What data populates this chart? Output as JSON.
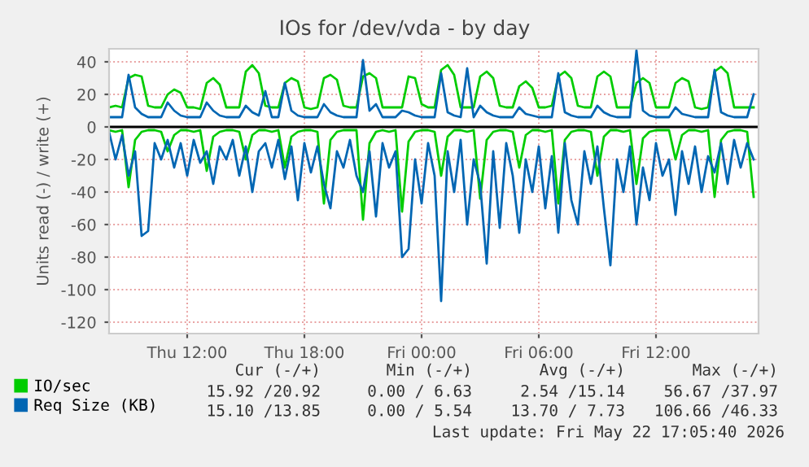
{
  "chart_data": {
    "type": "line",
    "title": "IOs for /dev/vda - by day",
    "ylabel": "Units read (-) / write (+)",
    "x": [
      "2026-05-21T08:00",
      "2026-05-21T08:20",
      "2026-05-21T08:40",
      "2026-05-21T09:00",
      "2026-05-21T09:20",
      "2026-05-21T09:40",
      "2026-05-21T10:00",
      "2026-05-21T10:20",
      "2026-05-21T10:40",
      "2026-05-21T11:00",
      "2026-05-21T11:20",
      "2026-05-21T11:40",
      "2026-05-21T12:00",
      "2026-05-21T12:20",
      "2026-05-21T12:40",
      "2026-05-21T13:00",
      "2026-05-21T13:20",
      "2026-05-21T13:40",
      "2026-05-21T14:00",
      "2026-05-21T14:20",
      "2026-05-21T14:40",
      "2026-05-21T15:00",
      "2026-05-21T15:20",
      "2026-05-21T15:40",
      "2026-05-21T16:00",
      "2026-05-21T16:20",
      "2026-05-21T16:40",
      "2026-05-21T17:00",
      "2026-05-21T17:20",
      "2026-05-21T17:40",
      "2026-05-21T18:00",
      "2026-05-21T18:20",
      "2026-05-21T18:40",
      "2026-05-21T19:00",
      "2026-05-21T19:20",
      "2026-05-21T19:40",
      "2026-05-21T20:00",
      "2026-05-21T20:20",
      "2026-05-21T20:40",
      "2026-05-21T21:00",
      "2026-05-21T21:20",
      "2026-05-21T21:40",
      "2026-05-21T22:00",
      "2026-05-21T22:20",
      "2026-05-21T22:40",
      "2026-05-21T23:00",
      "2026-05-21T23:20",
      "2026-05-21T23:40",
      "2026-05-22T00:00",
      "2026-05-22T00:20",
      "2026-05-22T00:40",
      "2026-05-22T01:00",
      "2026-05-22T01:20",
      "2026-05-22T01:40",
      "2026-05-22T02:00",
      "2026-05-22T02:20",
      "2026-05-22T02:40",
      "2026-05-22T03:00",
      "2026-05-22T03:20",
      "2026-05-22T03:40",
      "2026-05-22T04:00",
      "2026-05-22T04:20",
      "2026-05-22T04:40",
      "2026-05-22T05:00",
      "2026-05-22T05:20",
      "2026-05-22T05:40",
      "2026-05-22T06:00",
      "2026-05-22T06:20",
      "2026-05-22T06:40",
      "2026-05-22T07:00",
      "2026-05-22T07:20",
      "2026-05-22T07:40",
      "2026-05-22T08:00",
      "2026-05-22T08:20",
      "2026-05-22T08:40",
      "2026-05-22T09:00",
      "2026-05-22T09:20",
      "2026-05-22T09:40",
      "2026-05-22T10:00",
      "2026-05-22T10:20",
      "2026-05-22T10:40",
      "2026-05-22T11:00",
      "2026-05-22T11:20",
      "2026-05-22T11:40",
      "2026-05-22T12:00",
      "2026-05-22T12:20",
      "2026-05-22T12:40",
      "2026-05-22T13:00",
      "2026-05-22T13:20",
      "2026-05-22T13:40",
      "2026-05-22T14:00",
      "2026-05-22T14:20",
      "2026-05-22T14:40",
      "2026-05-22T15:00",
      "2026-05-22T15:20",
      "2026-05-22T15:40",
      "2026-05-22T16:00",
      "2026-05-22T16:20",
      "2026-05-22T16:40",
      "2026-05-22T17:00"
    ],
    "series": [
      {
        "name": "IO/sec",
        "color": "#00cc00",
        "values": [
          12,
          13,
          12,
          30,
          32,
          31,
          13,
          12,
          12,
          20,
          23,
          21,
          12,
          12,
          11,
          27,
          30,
          26,
          12,
          12,
          12,
          34,
          38,
          33,
          13,
          12,
          12,
          27,
          30,
          28,
          12,
          11,
          12,
          30,
          32,
          29,
          13,
          12,
          12,
          31,
          33,
          30,
          12,
          12,
          12,
          12,
          31,
          30,
          14,
          12,
          12,
          35,
          38,
          32,
          12,
          12,
          12,
          31,
          34,
          30,
          13,
          12,
          12,
          25,
          28,
          24,
          12,
          12,
          13,
          31,
          34,
          30,
          13,
          12,
          12,
          31,
          34,
          31,
          12,
          12,
          12,
          27,
          30,
          27,
          12,
          12,
          12,
          27,
          30,
          28,
          12,
          11,
          12,
          34,
          37,
          33,
          12,
          12,
          12,
          12
        ]
      },
      {
        "color": "#00cc00",
        "values": [
          -2,
          -3,
          -2,
          -37,
          -8,
          -3,
          -2,
          -2,
          -3,
          -15,
          -5,
          -2,
          -2,
          -3,
          -2,
          -27,
          -6,
          -3,
          -2,
          -2,
          -3,
          -20,
          -5,
          -2,
          -2,
          -3,
          -2,
          -25,
          -6,
          -3,
          -2,
          -2,
          -3,
          -47,
          -8,
          -3,
          -2,
          -2,
          -2,
          -57,
          -10,
          -3,
          -2,
          -3,
          -2,
          -52,
          -9,
          -3,
          -2,
          -2,
          -3,
          -30,
          -6,
          -2,
          -2,
          -3,
          -2,
          -44,
          -8,
          -3,
          -2,
          -2,
          -3,
          -25,
          -5,
          -2,
          -2,
          -3,
          -2,
          -47,
          -8,
          -3,
          -2,
          -2,
          -3,
          -30,
          -6,
          -2,
          -2,
          -3,
          -2,
          -35,
          -7,
          -3,
          -2,
          -2,
          -2,
          -20,
          -5,
          -2,
          -2,
          -3,
          -2,
          -43,
          -8,
          -3,
          -2,
          -2,
          -3,
          -43
        ]
      },
      {
        "name": "Req Size (KB)",
        "color": "#0066b3",
        "values": [
          6,
          6,
          6,
          32,
          12,
          8,
          6,
          6,
          6,
          15,
          10,
          7,
          6,
          6,
          6,
          15,
          10,
          7,
          6,
          6,
          6,
          13,
          9,
          7,
          22,
          6,
          6,
          27,
          10,
          7,
          6,
          6,
          6,
          14,
          9,
          7,
          6,
          6,
          6,
          41,
          10,
          14,
          6,
          6,
          6,
          10,
          9,
          7,
          6,
          6,
          6,
          33,
          9,
          7,
          6,
          36,
          6,
          13,
          9,
          7,
          6,
          6,
          6,
          12,
          8,
          7,
          6,
          6,
          6,
          33,
          9,
          7,
          6,
          6,
          6,
          13,
          9,
          7,
          6,
          6,
          6,
          47,
          10,
          7,
          6,
          6,
          6,
          12,
          8,
          7,
          6,
          6,
          6,
          35,
          9,
          7,
          6,
          6,
          6,
          20
        ]
      },
      {
        "color": "#0066b3",
        "values": [
          -3,
          -20,
          -5,
          -30,
          -15,
          -67,
          -64,
          -10,
          -20,
          -8,
          -25,
          -10,
          -30,
          -8,
          -22,
          -15,
          -35,
          -12,
          -20,
          -8,
          -30,
          -12,
          -40,
          -15,
          -10,
          -25,
          -8,
          -32,
          -12,
          -45,
          -10,
          -28,
          -12,
          -35,
          -50,
          -15,
          -25,
          -8,
          -30,
          -40,
          -15,
          -55,
          -10,
          -25,
          -15,
          -80,
          -75,
          -20,
          -47,
          -10,
          -30,
          -107,
          -15,
          -40,
          -8,
          -60,
          -20,
          -35,
          -84,
          -15,
          -62,
          -10,
          -30,
          -65,
          -20,
          -40,
          -12,
          -50,
          -18,
          -65,
          -10,
          -45,
          -60,
          -15,
          -35,
          -12,
          -50,
          -85,
          -20,
          -40,
          -12,
          -60,
          -25,
          -45,
          -10,
          -30,
          -20,
          -54,
          -15,
          -35,
          -12,
          -40,
          -18,
          -28,
          -10,
          -35,
          -8,
          -25,
          -10,
          -20
        ]
      }
    ],
    "xlim": [
      "2026-05-21T08:00",
      "2026-05-22T17:15"
    ],
    "xticks": [
      {
        "value": "2026-05-21T12:00",
        "label": "Thu 12:00"
      },
      {
        "value": "2026-05-21T18:00",
        "label": "Thu 18:00"
      },
      {
        "value": "2026-05-22T00:00",
        "label": "Fri 00:00"
      },
      {
        "value": "2026-05-22T06:00",
        "label": "Fri 06:00"
      },
      {
        "value": "2026-05-22T12:00",
        "label": "Fri 12:00"
      }
    ],
    "ylim": [
      -127,
      48
    ],
    "yticks": [
      -120,
      -100,
      -80,
      -60,
      -40,
      -20,
      0,
      20,
      40
    ],
    "grid": true,
    "legend": "bottom",
    "ref_lines": [
      {
        "axis": "y",
        "value": 0,
        "color": "#000000"
      }
    ],
    "annotations": [
      "Cur (-/+)",
      "Min (-/+)",
      "Avg (-/+)",
      "Max (-/+)",
      "15.92 /20.92",
      "0.00 / 6.63",
      "2.54 /15.14",
      "56.67 /37.97",
      "15.10 /13.85",
      "0.00 / 5.54",
      "13.70 / 7.73",
      "106.66 /46.33",
      "Last update: Fri May 22 17:05:40 2026"
    ]
  }
}
